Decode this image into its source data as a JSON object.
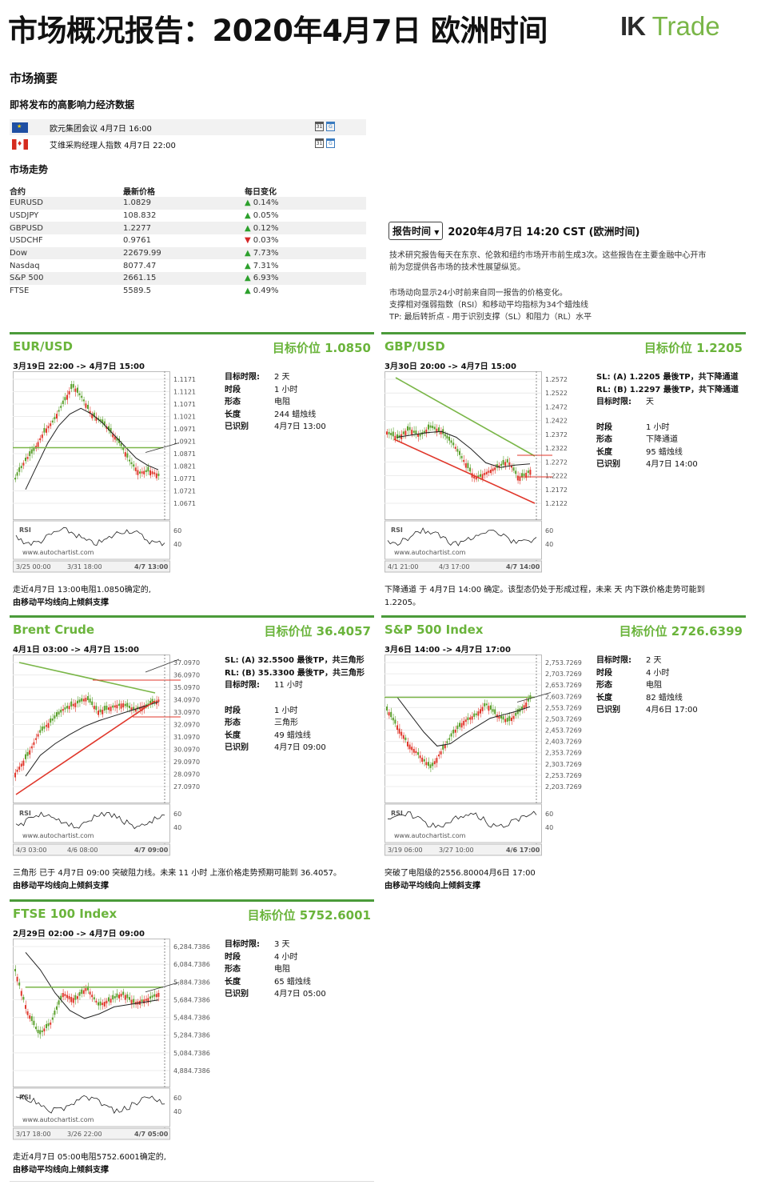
{
  "header": {
    "title": "市场概况报告：2020年4月7日 欧洲时间",
    "logo_mark": "IK",
    "logo_text": "Trade"
  },
  "summary": {
    "heading": "市场摘要",
    "events_heading": "即将发布的高影响力经济数据",
    "events": [
      {
        "flag": "eu-flag-icon",
        "text": "欧元集团会议 4月7日 16:00"
      },
      {
        "flag": "canada-flag-icon",
        "text": "艾维采购经理人指数 4月7日 22:00"
      }
    ],
    "trend_heading": "市场走势",
    "table_headers": [
      "合约",
      "最新价格",
      "每日变化"
    ],
    "table_rows": [
      {
        "symbol": "EURUSD",
        "price": "1.0829",
        "change": "0.14%",
        "dir": "up"
      },
      {
        "symbol": "USDJPY",
        "price": "108.832",
        "change": "0.05%",
        "dir": "up"
      },
      {
        "symbol": "GBPUSD",
        "price": "1.2277",
        "change": "0.12%",
        "dir": "up"
      },
      {
        "symbol": "USDCHF",
        "price": "0.9761",
        "change": "0.03%",
        "dir": "down"
      },
      {
        "symbol": "Dow",
        "price": "22679.99",
        "change": "7.73%",
        "dir": "up"
      },
      {
        "symbol": "Nasdaq",
        "price": "8077.47",
        "change": "7.31%",
        "dir": "up"
      },
      {
        "symbol": "S&P 500",
        "price": "2661.15",
        "change": "6.93%",
        "dir": "up"
      },
      {
        "symbol": "FTSE",
        "price": "5589.5",
        "change": "0.49%",
        "dir": "up"
      }
    ]
  },
  "report": {
    "button_label": "报告时间",
    "time": "2020年4月7日 14:20 CST (欧洲时间)",
    "para1_line1": "技术研究报告每天在东京、伦敦和纽约市场开市前生成3次。这些报告在主要金融中心开市",
    "para1_line2": "前为您提供各市场的技术性展望纵览。",
    "para2_line1": "市场动向显示24小时前来自同一报告的价格变化。",
    "para2_line2": "支撑相对强弱指数（RSI）和移动平均指标为34个蜡烛线",
    "para2_line3": "TP: 最后转折点 - 用于识别支撑（SL）和阻力（RL）水平"
  },
  "common": {
    "rsi_label": "RSI",
    "watermark": "www.autochartist.com",
    "rsi_ticks": [
      "60",
      "40"
    ],
    "k_target_time": "目标时限:",
    "k_period": "时段",
    "k_pattern": "形态",
    "k_length": "长度",
    "k_identified": "已识别"
  },
  "panels": [
    {
      "name": "EUR/USD",
      "target": "目标价位 1.0850",
      "range": "3月19日 22:00 -> 4月7日 15:00",
      "yticks": [
        "1.1171",
        "1.1121",
        "1.1071",
        "1.1021",
        "1.0971",
        "1.0921",
        "1.0871",
        "1.0821",
        "1.0771",
        "1.0721",
        "1.0671"
      ],
      "xticks": [
        "3/25 00:00",
        "3/31 18:00",
        "4/7 13:00"
      ],
      "target_time": "2 天",
      "period": "1 小时",
      "pattern": "电阻",
      "length": "244 蜡烛线",
      "identified": "4月7日 13:00",
      "desc1": "走近4月7日 13:00电阻1.0850确定的,",
      "desc2": "由移动平均线向上倾斜支撑"
    },
    {
      "name": "GBP/USD",
      "target": "目标价位 1.2205",
      "range": "3月30日 20:00 -> 4月7日 15:00",
      "yticks": [
        "1.2572",
        "1.2522",
        "1.2472",
        "1.2422",
        "1.2372",
        "1.2322",
        "1.2272",
        "1.2222",
        "1.2172",
        "1.2122"
      ],
      "xticks": [
        "4/1 21:00",
        "4/3 17:00",
        "4/7 14:00"
      ],
      "sl": "SL: (A) 1.2205 最後TP，共下降通道",
      "rl": "RL: (B) 1.2297 最後TP，共下降通道",
      "target_time": "天",
      "period": "1 小时",
      "pattern": "下降通道",
      "length": "95 蜡烛线",
      "identified": "4月7日 14:00",
      "desc1": "下降通道 于 4月7日 14:00 确定。该型态仍处于形成过程，未来 天 内下跌价格走势可能到",
      "desc2": "1.2205。"
    },
    {
      "name": "Brent Crude",
      "target": "目标价位 36.4057",
      "range": "4月1日 03:00 -> 4月7日 15:00",
      "yticks": [
        "37.0970",
        "36.0970",
        "35.0970",
        "34.0970",
        "33.0970",
        "32.0970",
        "31.0970",
        "30.0970",
        "29.0970",
        "28.0970",
        "27.0970"
      ],
      "xticks": [
        "4/3 03:00",
        "4/6 08:00",
        "4/7 09:00"
      ],
      "sl": "SL: (A) 32.5500 最後TP，共三角形",
      "rl": "RL: (B) 35.3300 最後TP，共三角形",
      "target_time": "11 小时",
      "period": "1 小时",
      "pattern": "三角形",
      "length": "49 蜡烛线",
      "identified": "4月7日 09:00",
      "desc1": "三角形 已于 4月7日 09:00 突破阻力线。未来 11 小时 上涨价格走势预期可能到 36.4057。",
      "desc2": "由移动平均线向上倾斜支撑"
    },
    {
      "name": "S&P 500 Index",
      "target": "目标价位 2726.6399",
      "range": "3月6日 14:00 -> 4月7日 17:00",
      "yticks": [
        "2,753.7269",
        "2,703.7269",
        "2,653.7269",
        "2,603.7269",
        "2,553.7269",
        "2,503.7269",
        "2,453.7269",
        "2,403.7269",
        "2,353.7269",
        "2,303.7269",
        "2,253.7269",
        "2,203.7269"
      ],
      "xticks": [
        "3/19 06:00",
        "3/27 10:00",
        "4/6 17:00"
      ],
      "target_time": "2 天",
      "period": "4 小时",
      "pattern": "电阻",
      "length": "82 蜡烛线",
      "identified": "4月6日 17:00",
      "desc1": "突破了电阻级的2556.80004月6日 17:00",
      "desc2": "由移动平均线向上倾斜支撑"
    },
    {
      "name": "FTSE 100 Index",
      "target": "目标价位 5752.6001",
      "range": "2月29日 02:00 -> 4月7日 09:00",
      "yticks": [
        "6,284.7386",
        "6,084.7386",
        "5,884.7386",
        "5,684.7386",
        "5,484.7386",
        "5,284.7386",
        "5,084.7386",
        "4,884.7386"
      ],
      "xticks": [
        "3/17 18:00",
        "3/26 22:00",
        "4/7 05:00"
      ],
      "target_time": "3 天",
      "period": "4 小时",
      "pattern": "电阻",
      "length": "65 蜡烛线",
      "identified": "4月7日 05:00",
      "desc1": "走近4月7日 05:00电阻5752.6001确定的,",
      "desc2": "由移动平均线向上倾斜支撑"
    }
  ],
  "colors": {
    "accent_green": "#6ab43b",
    "candle_up": "#e0372b",
    "candle_down": "#5aa02c"
  }
}
